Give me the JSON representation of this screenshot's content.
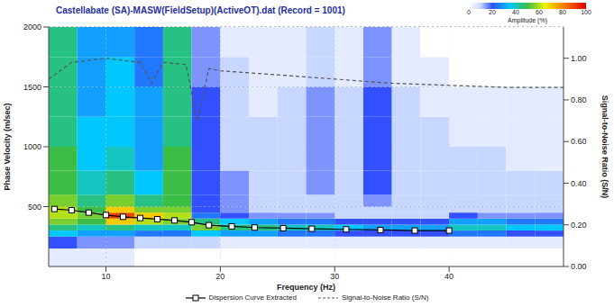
{
  "chart_data": {
    "type": "heatmap",
    "title": "Castellabate (SA)-MASW(FieldSetup)(ActiveOT).dat (Record = 1001)",
    "x_label": "Frequency (Hz)",
    "y_label": "Phase Velocity (m/sec)",
    "y2_label": "Signal-to-Noise Ratio (S/N)",
    "xlim": [
      5,
      50
    ],
    "xticks": [
      10,
      20,
      30,
      40
    ],
    "ylim": [
      0,
      2000
    ],
    "yticks": [
      500,
      1000,
      1500,
      2000
    ],
    "y2lim": [
      0,
      1.15
    ],
    "y2ticks": [
      {
        "value": 0,
        "label": "0.00"
      },
      {
        "value": 0.2,
        "label": "0.20"
      },
      {
        "value": 0.4,
        "label": "0.40"
      },
      {
        "value": 0.6,
        "label": "0.60"
      },
      {
        "value": 0.8,
        "label": "0.80"
      },
      {
        "value": 1,
        "label": "1.00"
      }
    ],
    "grid": true,
    "legend": "bottom",
    "x_bins": [
      5,
      7.5,
      10,
      12.5,
      15,
      17.5,
      20,
      22.5,
      25,
      27.5,
      30,
      32.5,
      35,
      37.5,
      40,
      42.5,
      45,
      47.5,
      50
    ],
    "y_bins": [
      0,
      150,
      250,
      300,
      350,
      400,
      450,
      500,
      600,
      800,
      1000,
      1250,
      1500,
      1750,
      2000
    ],
    "cells": [
      [
        5,
        5,
        5,
        0,
        0,
        0,
        0,
        0,
        0,
        0,
        0,
        0,
        0,
        0,
        0,
        0,
        0,
        0
      ],
      [
        20,
        15,
        15,
        10,
        10,
        10,
        5,
        5,
        5,
        5,
        5,
        5,
        5,
        5,
        5,
        5,
        5,
        5
      ],
      [
        35,
        30,
        30,
        25,
        25,
        35,
        30,
        30,
        25,
        25,
        20,
        20,
        20,
        20,
        25,
        25,
        20,
        20
      ],
      [
        45,
        40,
        45,
        40,
        40,
        55,
        45,
        45,
        40,
        40,
        35,
        30,
        30,
        30,
        40,
        40,
        35,
        35
      ],
      [
        55,
        50,
        70,
        60,
        55,
        45,
        35,
        30,
        25,
        25,
        20,
        20,
        20,
        20,
        30,
        30,
        25,
        25
      ],
      [
        60,
        55,
        90,
        70,
        60,
        25,
        20,
        15,
        15,
        15,
        10,
        10,
        10,
        10,
        20,
        15,
        15,
        15
      ],
      [
        60,
        50,
        70,
        55,
        55,
        20,
        15,
        10,
        10,
        10,
        10,
        10,
        10,
        10,
        10,
        10,
        10,
        10
      ],
      [
        55,
        45,
        55,
        45,
        50,
        20,
        15,
        10,
        10,
        10,
        10,
        15,
        10,
        10,
        10,
        10,
        10,
        10
      ],
      [
        50,
        40,
        45,
        35,
        50,
        20,
        15,
        10,
        10,
        15,
        10,
        20,
        10,
        10,
        10,
        10,
        10,
        10
      ],
      [
        50,
        35,
        40,
        30,
        50,
        20,
        10,
        10,
        10,
        15,
        10,
        20,
        10,
        10,
        10,
        10,
        5,
        5
      ],
      [
        45,
        35,
        35,
        30,
        45,
        20,
        10,
        10,
        10,
        15,
        10,
        20,
        10,
        10,
        5,
        5,
        5,
        5
      ],
      [
        45,
        30,
        35,
        30,
        45,
        20,
        10,
        5,
        10,
        15,
        10,
        20,
        10,
        5,
        5,
        5,
        5,
        5
      ],
      [
        45,
        30,
        35,
        25,
        45,
        15,
        10,
        5,
        5,
        10,
        5,
        15,
        5,
        5,
        0,
        0,
        0,
        0
      ],
      [
        45,
        30,
        30,
        25,
        45,
        15,
        5,
        5,
        5,
        10,
        5,
        15,
        5,
        0,
        0,
        0,
        0,
        0
      ]
    ],
    "colorbar": {
      "label": "Amplitude (%)",
      "range": [
        0,
        100
      ],
      "ticks": [
        0,
        20,
        40,
        60,
        80,
        100
      ]
    },
    "series": [
      {
        "name": "Dispersion Curve Extracted",
        "color": "#000000",
        "marker": "square",
        "line_style": "solid",
        "x": [
          5.5,
          7,
          8.5,
          10,
          11.5,
          13,
          14.5,
          16,
          17.5,
          19,
          21,
          23,
          25.5,
          28,
          31,
          34,
          37,
          40
        ],
        "values": [
          480,
          470,
          450,
          430,
          415,
          405,
          395,
          385,
          370,
          345,
          335,
          325,
          320,
          315,
          310,
          305,
          300,
          300
        ]
      },
      {
        "name": "Signal-to-Noise Ratio (S/N)",
        "color": "#555555",
        "line_style": "dashed",
        "axis": "y2",
        "x": [
          5,
          7,
          10,
          13,
          14,
          15,
          17,
          18,
          19,
          20,
          25,
          30,
          35,
          40,
          45,
          50
        ],
        "values": [
          0.9,
          0.98,
          1,
          0.98,
          0.88,
          0.98,
          0.97,
          0.7,
          0.95,
          0.94,
          0.92,
          0.9,
          0.88,
          0.87,
          0.86,
          0.86
        ]
      }
    ]
  }
}
